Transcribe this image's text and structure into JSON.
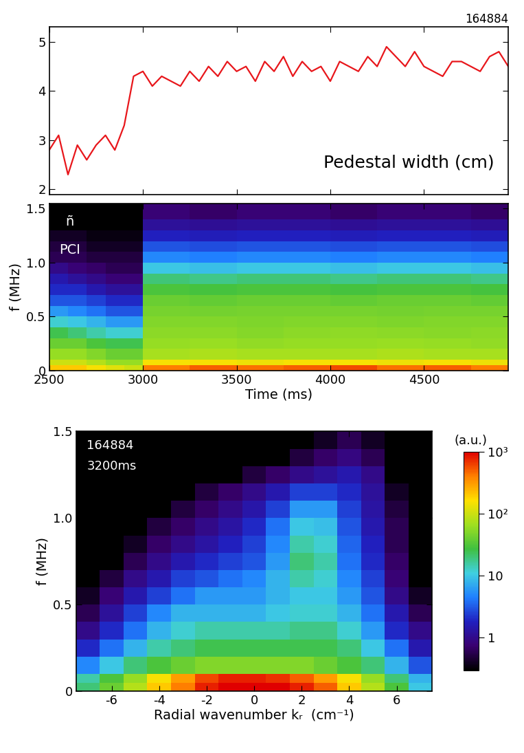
{
  "chart_data": [
    {
      "type": "line",
      "annotations": [
        "164884",
        "Pedestal width (cm)"
      ],
      "x": [
        2500,
        2550,
        2600,
        2650,
        2700,
        2750,
        2800,
        2850,
        2900,
        2950,
        3000,
        3050,
        3100,
        3150,
        3200,
        3250,
        3300,
        3350,
        3400,
        3450,
        3500,
        3550,
        3600,
        3650,
        3700,
        3750,
        3800,
        3850,
        3900,
        3950,
        4000,
        4050,
        4100,
        4150,
        4200,
        4250,
        4300,
        4350,
        4400,
        4450,
        4500,
        4550,
        4600,
        4650,
        4700,
        4750,
        4800,
        4850,
        4900,
        4950
      ],
      "series": [
        {
          "color": "#e8161b",
          "values": [
            2.8,
            3.1,
            2.3,
            2.9,
            2.6,
            2.9,
            3.1,
            2.8,
            3.3,
            4.3,
            4.4,
            4.1,
            4.3,
            4.2,
            4.1,
            4.4,
            4.2,
            4.5,
            4.3,
            4.6,
            4.4,
            4.5,
            4.2,
            4.6,
            4.4,
            4.7,
            4.3,
            4.6,
            4.4,
            4.5,
            4.2,
            4.6,
            4.5,
            4.4,
            4.7,
            4.5,
            4.9,
            4.7,
            4.5,
            4.8,
            4.5,
            4.4,
            4.3,
            4.6,
            4.6,
            4.5,
            4.4,
            4.7,
            4.8,
            4.5
          ]
        }
      ],
      "xlim": [
        2500,
        4950
      ],
      "xticks": [
        2500,
        3000,
        3500,
        4000,
        4500
      ],
      "ylim": [
        1.9,
        5.3
      ],
      "yticks": [
        2,
        3,
        4,
        5
      ],
      "tick_labels": "y"
    },
    {
      "type": "heatmap",
      "annotations": [
        "ñ",
        "PCI"
      ],
      "x_label": "Time (ms)",
      "y_label": "f (MHz)",
      "x_edges": [
        2500,
        2600,
        2700,
        2800,
        2900,
        3000,
        3250,
        3500,
        3750,
        4000,
        4250,
        4500,
        4750,
        4950
      ],
      "y_edges": [
        0,
        0.05,
        0.1,
        0.2,
        0.3,
        0.4,
        0.5,
        0.6,
        0.7,
        0.8,
        0.9,
        1.0,
        1.1,
        1.2,
        1.3,
        1.4,
        1.55
      ],
      "cells": [
        [
          200,
          200,
          150,
          120,
          100,
          400,
          500,
          450,
          500,
          600,
          450,
          500,
          400
        ],
        [
          100,
          100,
          80,
          60,
          60,
          150,
          150,
          140,
          150,
          150,
          140,
          150,
          140
        ],
        [
          60,
          60,
          50,
          40,
          40,
          70,
          75,
          70,
          72,
          70,
          75,
          70,
          72
        ],
        [
          40,
          40,
          30,
          25,
          25,
          60,
          62,
          58,
          60,
          60,
          62,
          60,
          58
        ],
        [
          25,
          20,
          15,
          12,
          12,
          55,
          55,
          52,
          55,
          56,
          55,
          54,
          55
        ],
        [
          12,
          10,
          8,
          6,
          6,
          50,
          50,
          48,
          50,
          50,
          48,
          50,
          50
        ],
        [
          6,
          5,
          4,
          3,
          3,
          45,
          44,
          45,
          46,
          45,
          44,
          45,
          45
        ],
        [
          3,
          3,
          2.5,
          2,
          2,
          40,
          38,
          40,
          40,
          38,
          40,
          40,
          38
        ],
        [
          2,
          2,
          1.5,
          1.2,
          1.2,
          30,
          28,
          30,
          30,
          28,
          30,
          30,
          28
        ],
        [
          1.5,
          1.2,
          1,
          0.8,
          0.8,
          20,
          18,
          20,
          20,
          18,
          20,
          20,
          18
        ],
        [
          1,
          0.8,
          0.7,
          0.6,
          0.6,
          10,
          9,
          10,
          10,
          9,
          10,
          10,
          9
        ],
        [
          0.6,
          0.6,
          0.5,
          0.5,
          0.5,
          5,
          4.5,
          5,
          5,
          4.5,
          5,
          5,
          4.5
        ],
        [
          0.5,
          0.5,
          0.4,
          0.4,
          0.4,
          3,
          2.8,
          3,
          3,
          2.8,
          3,
          3,
          2.8
        ],
        [
          0.4,
          0.4,
          0.35,
          0.35,
          0.35,
          1.8,
          1.7,
          1.8,
          1.8,
          1.7,
          1.8,
          1.8,
          1.7
        ],
        [
          0.3,
          0.3,
          0.3,
          0.3,
          0.3,
          1.2,
          1.1,
          1.2,
          1.2,
          1.1,
          1.2,
          1.2,
          1.1
        ],
        [
          0.3,
          0.3,
          0.3,
          0.3,
          0.3,
          0.8,
          0.7,
          0.8,
          0.8,
          0.7,
          0.8,
          0.8,
          0.7
        ]
      ],
      "color_range": [
        0.3,
        1000
      ],
      "xlim": [
        2500,
        4950
      ],
      "xticks": [
        2500,
        3000,
        3500,
        4000,
        4500
      ],
      "ylim": [
        0,
        1.55
      ],
      "yticks": [
        0,
        0.5,
        {
          "value": 1,
          "label": "1.0"
        },
        1.5
      ]
    },
    {
      "type": "heatmap",
      "annotations": [
        "164884",
        "3200ms"
      ],
      "x_label": "Radial wavenumber kᵣ  (cm⁻¹)",
      "y_label": "f (MHz)",
      "x_edges": [
        -7.5,
        -6.5,
        -5.5,
        -4.5,
        -3.5,
        -2.5,
        -1.5,
        -0.5,
        0.5,
        1.5,
        2.5,
        3.5,
        4.5,
        5.5,
        6.5,
        7.5
      ],
      "y_edges": [
        0,
        0.05,
        0.1,
        0.2,
        0.3,
        0.4,
        0.5,
        0.6,
        0.7,
        0.8,
        0.9,
        1.0,
        1.1,
        1.2,
        1.3,
        1.4,
        1.5
      ],
      "cells": [
        [
          20,
          40,
          80,
          200,
          400,
          800,
          1000,
          1000,
          1000,
          800,
          500,
          200,
          80,
          30,
          10
        ],
        [
          15,
          30,
          60,
          150,
          300,
          600,
          800,
          800,
          700,
          500,
          300,
          150,
          60,
          20,
          8
        ],
        [
          5,
          10,
          20,
          30,
          40,
          50,
          50,
          50,
          50,
          50,
          40,
          30,
          20,
          8,
          3
        ],
        [
          2,
          4,
          8,
          15,
          20,
          25,
          25,
          25,
          25,
          25,
          25,
          20,
          10,
          4,
          1.5
        ],
        [
          1,
          2,
          4,
          8,
          12,
          15,
          15,
          15,
          15,
          18,
          18,
          12,
          6,
          2,
          1
        ],
        [
          0.6,
          1.2,
          2.5,
          5,
          8,
          8,
          8,
          8,
          10,
          12,
          12,
          8,
          4,
          1.5,
          0.6
        ],
        [
          0.4,
          0.8,
          1.5,
          2.5,
          4,
          6,
          6,
          6,
          8,
          10,
          10,
          6,
          3,
          1,
          0.4
        ],
        [
          0.3,
          0.5,
          1,
          1.5,
          2.5,
          3,
          4,
          5,
          8,
          15,
          12,
          5,
          2.5,
          0.8,
          0.3
        ],
        [
          0.3,
          0.3,
          0.6,
          1,
          1.5,
          2,
          2.5,
          3,
          6,
          20,
          15,
          4,
          2,
          0.7,
          0.3
        ],
        [
          0.3,
          0.3,
          0.4,
          0.7,
          1,
          1.3,
          1.8,
          2.5,
          5,
          15,
          12,
          3.5,
          1.8,
          0.6,
          0.3
        ],
        [
          0.3,
          0.3,
          0.3,
          0.5,
          0.7,
          1,
          1.3,
          2,
          4,
          10,
          9,
          3,
          1.5,
          0.6,
          0.3
        ],
        [
          0.3,
          0.3,
          0.3,
          0.3,
          0.5,
          0.7,
          1,
          1.4,
          2.5,
          6,
          6,
          2.5,
          1.3,
          0.5,
          0.3
        ],
        [
          0.3,
          0.3,
          0.3,
          0.3,
          0.3,
          0.5,
          0.7,
          1,
          1.5,
          2.5,
          2.5,
          2,
          1.2,
          0.4,
          0.3
        ],
        [
          0.3,
          0.3,
          0.3,
          0.3,
          0.3,
          0.3,
          0.3,
          0.5,
          0.7,
          1,
          1.2,
          1.5,
          1,
          0.3,
          0.3
        ],
        [
          0.3,
          0.3,
          0.3,
          0.3,
          0.3,
          0.3,
          0.3,
          0.3,
          0.3,
          0.5,
          0.7,
          0.9,
          0.6,
          0.3,
          0.3
        ],
        [
          0.3,
          0.3,
          0.3,
          0.3,
          0.3,
          0.3,
          0.3,
          0.3,
          0.3,
          0.3,
          0.4,
          0.6,
          0.4,
          0.3,
          0.3
        ]
      ],
      "colorbar": {
        "label": "(a.u.)",
        "range": [
          0.3,
          1000
        ],
        "ticks": [
          1,
          10,
          {
            "value": 100,
            "label": "10²"
          },
          {
            "value": 1000,
            "label": "10³"
          }
        ]
      },
      "xlim": [
        -7.5,
        7.5
      ],
      "xticks": [
        -6,
        -4,
        -2,
        0,
        2,
        4,
        6
      ],
      "ylim": [
        0,
        1.5
      ],
      "yticks": [
        0,
        0.5,
        {
          "value": 1,
          "label": "1.0"
        },
        1.5
      ]
    }
  ]
}
